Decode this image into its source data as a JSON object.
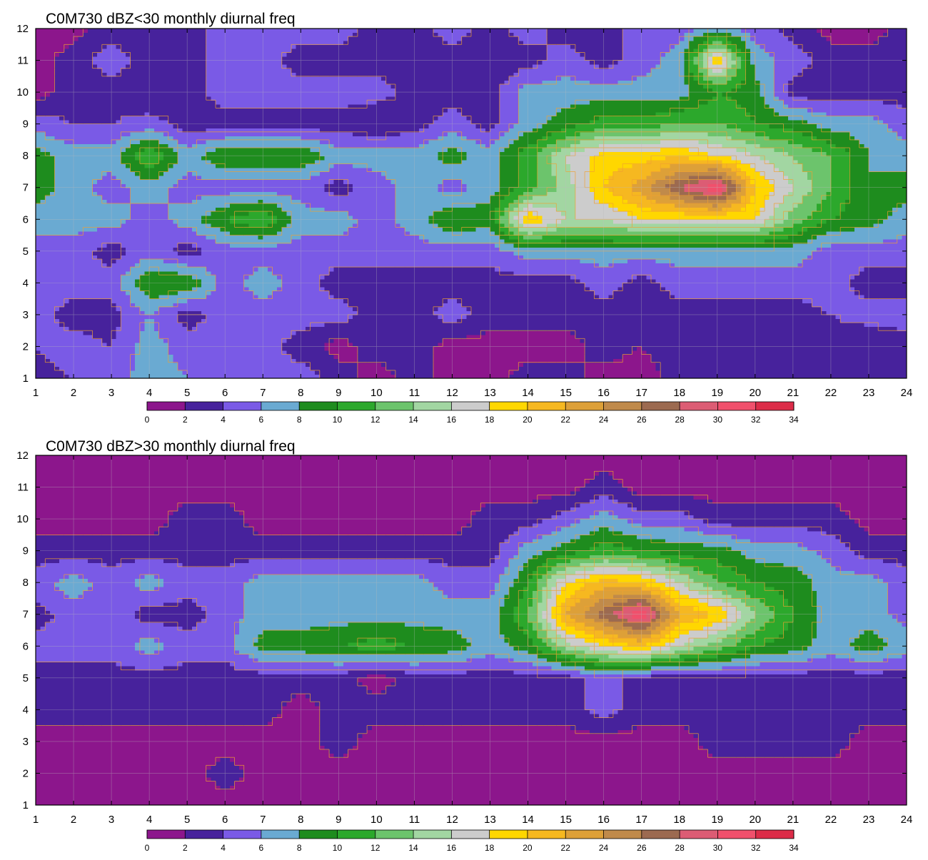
{
  "colors": {
    "palette": [
      "#8c168c",
      "#47229c",
      "#7a5ae6",
      "#6aaad2",
      "#1e8c1e",
      "#2ca82c",
      "#6cc46c",
      "#a2d6a2",
      "#cccccc",
      "#ffd700",
      "#f6b820",
      "#dda038",
      "#c08a4a",
      "#9c6a50",
      "#dc5c74",
      "#f0506c",
      "#dc2c48"
    ],
    "contour_line": "#f0a030",
    "grid": "#bbbbbb"
  },
  "chart_data": [
    {
      "type": "heatmap",
      "title": "C0M730 dBZ<30 monthly diurnal freq",
      "xlabel": "",
      "ylabel": "",
      "xlim": [
        1,
        24
      ],
      "ylim": [
        1,
        12
      ],
      "x_ticks": [
        "1",
        "2",
        "3",
        "4",
        "5",
        "6",
        "7",
        "8",
        "9",
        "10",
        "11",
        "12",
        "13",
        "14",
        "15",
        "16",
        "17",
        "18",
        "19",
        "20",
        "21",
        "22",
        "23",
        "24"
      ],
      "y_ticks": [
        "1",
        "2",
        "3",
        "4",
        "5",
        "6",
        "7",
        "8",
        "9",
        "10",
        "11",
        "12"
      ],
      "colorbar_levels": [
        0,
        2,
        4,
        6,
        8,
        10,
        12,
        14,
        16,
        18,
        20,
        22,
        24,
        26,
        28,
        30,
        32,
        34
      ],
      "colorbar_labels": [
        "0",
        "2",
        "4",
        "6",
        "8",
        "10",
        "12",
        "14",
        "16",
        "18",
        "20",
        "22",
        "24",
        "26",
        "28",
        "30",
        "32",
        "34"
      ],
      "rows": [
        [
          3,
          4,
          5,
          7,
          6,
          5,
          6,
          5,
          3,
          1,
          3,
          1,
          1,
          3,
          3,
          1,
          1,
          3,
          3,
          3,
          3,
          3,
          3,
          3
        ],
        [
          4,
          5,
          4,
          7,
          5,
          6,
          5,
          3,
          1,
          3,
          3,
          1,
          1,
          1,
          1,
          3,
          2,
          3,
          3,
          2,
          4,
          3,
          2,
          3
        ],
        [
          5,
          3,
          3,
          6,
          3,
          5,
          5,
          5,
          5,
          3,
          3,
          5,
          3,
          3,
          3,
          3,
          3,
          3,
          3,
          3,
          3,
          4,
          5,
          5
        ],
        [
          5,
          5,
          5,
          10,
          10,
          5,
          7,
          5,
          3,
          3,
          3,
          3,
          3,
          3,
          3,
          5,
          3,
          5,
          5,
          5,
          5,
          5,
          3,
          3
        ],
        [
          5,
          5,
          3,
          5,
          3,
          5,
          5,
          5,
          5,
          5,
          5,
          5,
          5,
          7,
          7,
          7,
          7,
          7,
          7,
          7,
          7,
          5,
          5,
          5
        ],
        [
          7,
          7,
          7,
          5,
          7,
          10,
          12,
          7,
          7,
          5,
          7,
          10,
          9,
          20,
          16,
          16,
          18,
          18,
          18,
          18,
          13,
          10,
          9,
          7
        ],
        [
          9,
          7,
          5,
          7,
          5,
          5,
          5,
          5,
          3,
          5,
          7,
          5,
          7,
          11,
          15,
          20,
          23,
          28,
          32,
          20,
          16,
          12,
          8,
          9
        ],
        [
          9,
          7,
          7,
          12,
          7,
          10,
          10,
          10,
          7,
          7,
          7,
          9,
          7,
          11,
          16,
          19,
          19,
          20,
          18,
          16,
          14,
          12,
          8,
          7
        ],
        [
          5,
          4,
          4,
          5,
          3,
          3,
          3,
          3,
          3,
          2,
          3,
          5,
          3,
          7,
          9,
          11,
          11,
          12,
          12,
          10,
          9,
          7,
          7,
          5
        ],
        [
          1,
          3,
          3,
          2,
          3,
          5,
          5,
          5,
          5,
          5,
          3,
          3,
          3,
          7,
          7,
          7,
          7,
          7,
          10,
          9,
          3,
          3,
          3,
          3
        ],
        [
          1,
          3,
          5,
          3,
          3,
          5,
          5,
          3,
          3,
          3,
          3,
          3,
          3,
          3,
          5,
          3,
          5,
          7,
          20,
          7,
          5,
          3,
          3,
          3
        ],
        [
          1,
          1,
          3,
          3,
          3,
          5,
          5,
          5,
          5,
          3,
          3,
          5,
          3,
          5,
          3,
          3,
          5,
          5,
          7,
          5,
          3,
          1,
          1,
          3
        ]
      ]
    },
    {
      "type": "heatmap",
      "title": "C0M730 dBZ>30 monthly diurnal freq",
      "xlabel": "",
      "ylabel": "",
      "xlim": [
        1,
        24
      ],
      "ylim": [
        1,
        12
      ],
      "x_ticks": [
        "1",
        "2",
        "3",
        "4",
        "5",
        "6",
        "7",
        "8",
        "9",
        "10",
        "11",
        "12",
        "13",
        "14",
        "15",
        "16",
        "17",
        "18",
        "19",
        "20",
        "21",
        "22",
        "23",
        "24"
      ],
      "y_ticks": [
        "1",
        "2",
        "3",
        "4",
        "5",
        "6",
        "7",
        "8",
        "9",
        "10",
        "11",
        "12"
      ],
      "colorbar_levels": [
        0,
        2,
        4,
        6,
        8,
        10,
        12,
        14,
        16,
        18,
        20,
        22,
        24,
        26,
        28,
        30,
        32,
        34
      ],
      "colorbar_labels": [
        "0",
        "2",
        "4",
        "6",
        "8",
        "10",
        "12",
        "14",
        "16",
        "18",
        "20",
        "22",
        "24",
        "26",
        "28",
        "30",
        "32",
        "34"
      ],
      "rows": [
        [
          1,
          1,
          1,
          1,
          1,
          1,
          1,
          1,
          1,
          1,
          1,
          1,
          1,
          1,
          1,
          1,
          1,
          1,
          1,
          1,
          1,
          1,
          1,
          1
        ],
        [
          1,
          1,
          1,
          1,
          1,
          3,
          1,
          1,
          1,
          1,
          1,
          1,
          1,
          1,
          1,
          1,
          1,
          1,
          1,
          1,
          1,
          1,
          1,
          1
        ],
        [
          1,
          1,
          1,
          1,
          1,
          1,
          1,
          1,
          3,
          1,
          1,
          1,
          1,
          1,
          1,
          1,
          1,
          1,
          3,
          3,
          3,
          3,
          1,
          1
        ],
        [
          3,
          3,
          3,
          3,
          3,
          3,
          3,
          1,
          3,
          3,
          3,
          3,
          3,
          3,
          3,
          5,
          3,
          3,
          3,
          3,
          3,
          3,
          3,
          3
        ],
        [
          3,
          3,
          3,
          3,
          3,
          3,
          3,
          3,
          3,
          1,
          3,
          3,
          3,
          3,
          3,
          5,
          3,
          3,
          3,
          3,
          3,
          3,
          3,
          3
        ],
        [
          5,
          5,
          5,
          7,
          5,
          5,
          9,
          9,
          10,
          11,
          10,
          9,
          7,
          9,
          15,
          18,
          20,
          16,
          13,
          10,
          9,
          7,
          9,
          7
        ],
        [
          3,
          5,
          5,
          3,
          3,
          5,
          7,
          7,
          7,
          7,
          7,
          7,
          7,
          12,
          22,
          27,
          32,
          22,
          20,
          14,
          10,
          7,
          7,
          5
        ],
        [
          5,
          7,
          5,
          7,
          5,
          5,
          7,
          7,
          7,
          7,
          7,
          5,
          5,
          10,
          18,
          21,
          20,
          16,
          12,
          10,
          9,
          7,
          7,
          5
        ],
        [
          3,
          3,
          3,
          3,
          3,
          3,
          3,
          3,
          3,
          3,
          3,
          3,
          3,
          7,
          9,
          11,
          10,
          9,
          9,
          7,
          7,
          5,
          3,
          3
        ],
        [
          1,
          1,
          1,
          1,
          3,
          3,
          1,
          1,
          1,
          1,
          1,
          1,
          3,
          3,
          5,
          7,
          5,
          5,
          3,
          3,
          3,
          3,
          1,
          1
        ],
        [
          1,
          1,
          1,
          1,
          1,
          1,
          1,
          1,
          1,
          1,
          1,
          1,
          1,
          1,
          1,
          3,
          1,
          1,
          1,
          1,
          1,
          1,
          1,
          1
        ],
        [
          1,
          1,
          1,
          1,
          1,
          1,
          1,
          1,
          1,
          1,
          1,
          1,
          1,
          1,
          1,
          1,
          1,
          1,
          1,
          1,
          1,
          1,
          1,
          1
        ]
      ]
    }
  ]
}
